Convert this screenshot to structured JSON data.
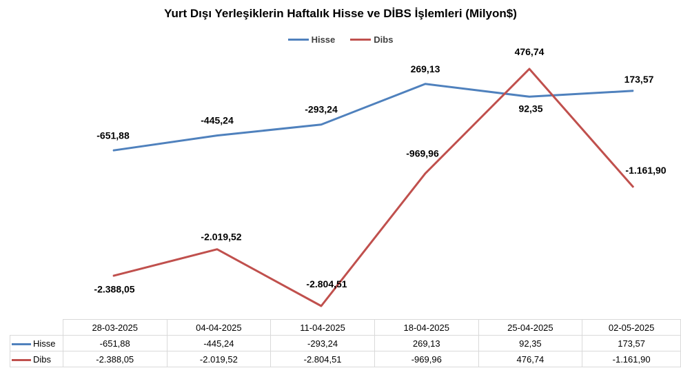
{
  "chart_data": {
    "type": "line",
    "title": "Yurt Dışı Yerleşiklerin Haftalık Hisse ve DİBS İşlemleri (Milyon$)",
    "categories": [
      "28-03-2025",
      "04-04-2025",
      "11-04-2025",
      "18-04-2025",
      "25-04-2025",
      "02-05-2025"
    ],
    "series": [
      {
        "name": "Hisse",
        "color": "#4f81bd",
        "values": [
          -651.88,
          -445.24,
          -293.24,
          269.13,
          92.35,
          173.57
        ],
        "labels": [
          "-651,88",
          "-445,24",
          "-293,24",
          "269,13",
          "92,35",
          "173,57"
        ]
      },
      {
        "name": "Dibs",
        "color": "#c0504d",
        "values": [
          -2388.05,
          -2019.52,
          -2804.51,
          -969.96,
          476.74,
          -1161.9
        ],
        "labels": [
          "-2.388,05",
          "-2.019,52",
          "-2.804,51",
          "-969,96",
          "476,74",
          "-1.161,90"
        ]
      }
    ],
    "legend": "top",
    "grid": false,
    "data_table": true
  }
}
